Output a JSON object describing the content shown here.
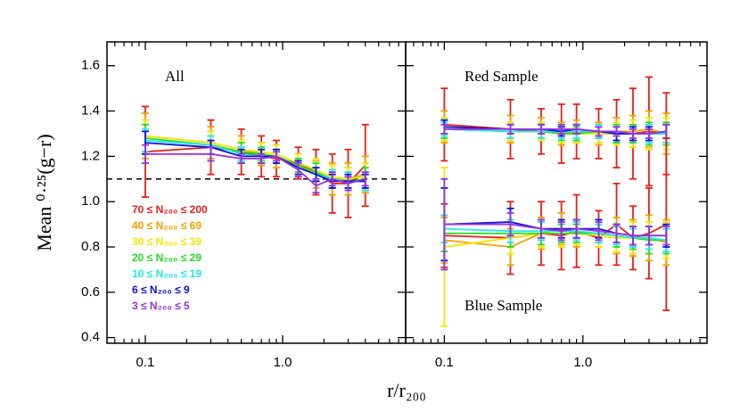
{
  "chart_data": [
    {
      "type": "line",
      "annotation": "All",
      "x": [
        0.1,
        0.3,
        0.5,
        0.7,
        0.9,
        1.3,
        1.75,
        2.3,
        3.0,
        4.0
      ],
      "xlim": [
        0.0526,
        7.87
      ],
      "xticks": [
        0.1,
        {
          "value": 1,
          "label": "1.0"
        }
      ],
      "xminorticks": [
        0.06,
        0.07,
        0.08,
        0.09,
        0.2,
        0.3,
        0.4,
        0.5,
        0.6,
        0.7,
        0.8,
        0.9,
        2,
        3,
        4,
        5,
        6,
        7
      ],
      "log_x": true,
      "ylim": [
        0.375,
        1.705
      ],
      "yticks": [
        0.4,
        0.6,
        0.8,
        {
          "value": 1,
          "label": "1.0"
        },
        1.2,
        1.4,
        1.6
      ],
      "ylabel": "Mean ⁰·²⁵(g−r)",
      "xlabel": "r/r₂₀₀",
      "hline": 1.1,
      "series": [
        {
          "name": "70 ≤ N₂₀₀ ≤ 200",
          "color": "#e8201a",
          "values": [
            1.22,
            1.24,
            1.22,
            1.2,
            1.19,
            1.17,
            1.13,
            1.08,
            1.08,
            1.16
          ],
          "errors": [
            0.2,
            0.12,
            0.1,
            0.09,
            0.08,
            0.07,
            0.1,
            0.13,
            0.15,
            0.18
          ]
        },
        {
          "name": "40 ≤ N₂₀₀ ≤ 69",
          "color": "#f5a000",
          "values": [
            1.29,
            1.26,
            1.23,
            1.21,
            1.2,
            1.16,
            1.12,
            1.1,
            1.1,
            1.12
          ],
          "errors": [
            0.1,
            0.07,
            0.06,
            0.05,
            0.05,
            0.05,
            0.06,
            0.07,
            0.07,
            0.08
          ]
        },
        {
          "name": "30 ≤ N₂₀₀ ≤ 39",
          "color": "#f0e800",
          "values": [
            1.29,
            1.26,
            1.23,
            1.22,
            1.21,
            1.17,
            1.14,
            1.11,
            1.1,
            1.11
          ],
          "errors": [
            0.07,
            0.05,
            0.04,
            0.04,
            0.04,
            0.04,
            0.05,
            0.05,
            0.05,
            0.06
          ]
        },
        {
          "name": "20 ≤ N₂₀₀ ≤ 29",
          "color": "#22dd22",
          "values": [
            1.28,
            1.25,
            1.22,
            1.21,
            1.2,
            1.16,
            1.13,
            1.1,
            1.09,
            1.1
          ],
          "errors": [
            0.06,
            0.04,
            0.04,
            0.03,
            0.03,
            0.03,
            0.04,
            0.04,
            0.04,
            0.05
          ]
        },
        {
          "name": "10 ≤ N₂₀₀ ≤ 19",
          "color": "#22e8e8",
          "values": [
            1.27,
            1.25,
            1.21,
            1.2,
            1.2,
            1.15,
            1.12,
            1.1,
            1.09,
            1.09
          ],
          "errors": [
            0.05,
            0.04,
            0.03,
            0.03,
            0.03,
            0.03,
            0.03,
            0.04,
            0.04,
            0.04
          ]
        },
        {
          "name": "6 ≤ N₂₀₀ ≤ 9",
          "color": "#1010dd",
          "values": [
            1.26,
            1.24,
            1.2,
            1.2,
            1.2,
            1.15,
            1.12,
            1.09,
            1.09,
            1.09
          ],
          "errors": [
            0.05,
            0.03,
            0.03,
            0.03,
            0.03,
            0.03,
            0.03,
            0.03,
            0.03,
            0.03
          ]
        },
        {
          "name": "3 ≤ N₂₀₀ ≤ 5",
          "color": "#9933dd",
          "values": [
            1.21,
            1.21,
            1.19,
            1.19,
            1.2,
            1.14,
            1.07,
            1.1,
            1.08,
            1.1
          ],
          "errors": [
            0.04,
            0.03,
            0.02,
            0.02,
            0.02,
            0.03,
            0.03,
            0.03,
            0.03,
            0.03
          ]
        }
      ]
    },
    {
      "type": "line",
      "x": [
        0.1,
        0.3,
        0.5,
        0.7,
        0.9,
        1.3,
        1.75,
        2.3,
        3.0,
        4.0
      ],
      "xlim": [
        0.0526,
        7.87
      ],
      "xticks": [
        0.1,
        {
          "value": 1,
          "label": "1.0"
        }
      ],
      "xminorticks": [
        0.06,
        0.07,
        0.08,
        0.09,
        0.2,
        0.3,
        0.4,
        0.5,
        0.6,
        0.7,
        0.8,
        0.9,
        2,
        3,
        4,
        5,
        6,
        7
      ],
      "log_x": true,
      "ylim": [
        0.375,
        1.705
      ],
      "yticks": [
        0.4,
        0.6,
        0.8,
        1,
        1.2,
        1.4,
        1.6
      ],
      "groups": [
        {
          "annotation": "Red Sample",
          "series": [
            {
              "color": "#e8201a",
              "values": [
                1.34,
                1.32,
                1.31,
                1.3,
                1.31,
                1.3,
                1.3,
                1.3,
                1.31,
                1.3
              ],
              "errors": [
                0.16,
                0.13,
                0.1,
                0.13,
                0.12,
                0.11,
                0.15,
                0.2,
                0.24,
                0.18
              ]
            },
            {
              "color": "#f5a000",
              "values": [
                1.33,
                1.32,
                1.32,
                1.3,
                1.31,
                1.3,
                1.31,
                1.31,
                1.32,
                1.3
              ],
              "errors": [
                0.07,
                0.06,
                0.05,
                0.05,
                0.05,
                0.05,
                0.06,
                0.07,
                0.08,
                0.09
              ]
            },
            {
              "color": "#f0e800",
              "values": [
                1.32,
                1.31,
                1.31,
                1.3,
                1.3,
                1.3,
                1.3,
                1.3,
                1.3,
                1.3
              ],
              "errors": [
                0.05,
                0.04,
                0.04,
                0.04,
                0.04,
                0.04,
                0.05,
                0.06,
                0.07,
                0.07
              ]
            },
            {
              "color": "#22dd22",
              "values": [
                1.32,
                1.31,
                1.31,
                1.3,
                1.3,
                1.31,
                1.3,
                1.3,
                1.3,
                1.3
              ],
              "errors": [
                0.04,
                0.03,
                0.03,
                0.03,
                0.03,
                0.03,
                0.04,
                0.04,
                0.05,
                0.05
              ]
            },
            {
              "color": "#22e8e8",
              "values": [
                1.32,
                1.31,
                1.31,
                1.31,
                1.31,
                1.31,
                1.3,
                1.3,
                1.3,
                1.3
              ],
              "errors": [
                0.03,
                0.03,
                0.03,
                0.03,
                0.03,
                0.03,
                0.03,
                0.03,
                0.04,
                0.04
              ]
            },
            {
              "color": "#1010dd",
              "values": [
                1.33,
                1.32,
                1.32,
                1.31,
                1.32,
                1.31,
                1.3,
                1.3,
                1.3,
                1.31
              ],
              "errors": [
                0.03,
                0.02,
                0.02,
                0.02,
                0.02,
                0.02,
                0.03,
                0.03,
                0.03,
                0.03
              ]
            },
            {
              "color": "#9933dd",
              "values": [
                1.32,
                1.32,
                1.32,
                1.32,
                1.32,
                1.31,
                1.31,
                1.3,
                1.3,
                1.31
              ],
              "errors": [
                0.02,
                0.02,
                0.02,
                0.02,
                0.02,
                0.02,
                0.02,
                0.02,
                0.02,
                0.03
              ]
            }
          ]
        },
        {
          "annotation": "Blue Sample",
          "series": [
            {
              "color": "#e8201a",
              "values": [
                0.85,
                0.84,
                0.86,
                0.85,
                0.87,
                0.84,
                0.9,
                0.84,
                0.86,
                0.9
              ],
              "errors": [
                0.14,
                0.16,
                0.14,
                0.15,
                0.16,
                0.12,
                0.18,
                0.14,
                0.2,
                0.38
              ]
            },
            {
              "color": "#f5a000",
              "values": [
                0.83,
                0.8,
                0.86,
                0.88,
                0.86,
                0.86,
                0.85,
                0.84,
                0.84,
                0.82
              ],
              "errors": [
                0.1,
                0.08,
                0.07,
                0.07,
                0.06,
                0.06,
                0.08,
                0.08,
                0.1,
                0.1
              ]
            },
            {
              "color": "#f0e800",
              "values": [
                0.8,
                0.84,
                0.86,
                0.86,
                0.86,
                0.85,
                0.84,
                0.84,
                0.84,
                0.83
              ],
              "errors": [
                0.35,
                0.07,
                0.06,
                0.06,
                0.05,
                0.05,
                0.06,
                0.07,
                0.07,
                0.08
              ]
            },
            {
              "color": "#22dd22",
              "values": [
                0.86,
                0.86,
                0.86,
                0.86,
                0.86,
                0.86,
                0.85,
                0.84,
                0.83,
                0.83
              ],
              "errors": [
                0.08,
                0.06,
                0.05,
                0.04,
                0.04,
                0.04,
                0.05,
                0.05,
                0.06,
                0.06
              ]
            },
            {
              "color": "#22e8e8",
              "values": [
                0.88,
                0.87,
                0.87,
                0.87,
                0.87,
                0.86,
                0.85,
                0.84,
                0.84,
                0.83
              ],
              "errors": [
                0.06,
                0.05,
                0.04,
                0.04,
                0.04,
                0.04,
                0.04,
                0.04,
                0.05,
                0.05
              ]
            },
            {
              "color": "#1010dd",
              "values": [
                0.9,
                0.91,
                0.88,
                0.88,
                0.88,
                0.88,
                0.86,
                0.85,
                0.85,
                0.85
              ],
              "errors": [
                0.16,
                0.06,
                0.04,
                0.04,
                0.04,
                0.04,
                0.04,
                0.04,
                0.04,
                0.05
              ]
            },
            {
              "color": "#9933dd",
              "values": [
                0.9,
                0.9,
                0.88,
                0.87,
                0.88,
                0.87,
                0.86,
                0.85,
                0.85,
                0.85
              ],
              "errors": [
                0.2,
                0.05,
                0.04,
                0.04,
                0.04,
                0.04,
                0.04,
                0.04,
                0.04,
                0.04
              ]
            }
          ]
        }
      ]
    }
  ]
}
